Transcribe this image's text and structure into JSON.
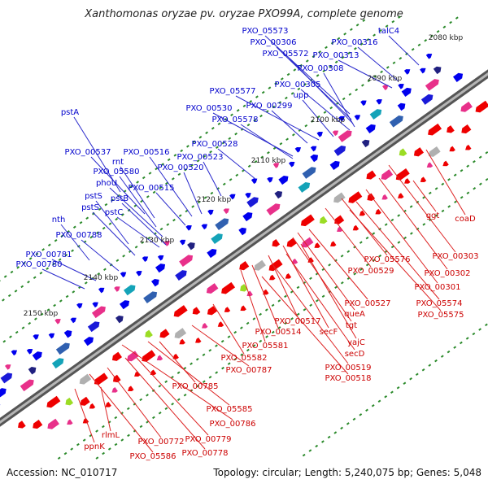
{
  "title": "Xanthomonas oryzae pv. oryzae PXO99A, complete genome",
  "accession": "Accession: NC_010717",
  "stats": "Topology: circular; Length: 5,240,075 bp; Genes: 5,048",
  "kbp_labels": [
    "2080 kbp",
    "2090 kbp",
    "2100 kbp",
    "2110 kbp",
    "2120 kbp",
    "2130 kbp",
    "2140 kbp",
    "2150 kbp"
  ],
  "upper_genes": [
    "PXO_05573",
    "talC4",
    "PXO_00306",
    "PXO_00316",
    "PXO_05572",
    "PXO_00313",
    "PXO_00308",
    "PXO_00305",
    "upp",
    "PXO_05577",
    "PXO_00299",
    "PXO_00530",
    "PXO_05578",
    "pstA",
    "PXO_00528",
    "PXO_00537",
    "rnt",
    "PXO_00516",
    "PXO_00523",
    "PXO_05580",
    "PXO_00520",
    "phoU",
    "PXO_00515",
    "pstS",
    "pstB",
    "pstS",
    "pstC",
    "nth",
    "PXO_00788",
    "PXO_00781",
    "PXO_00780"
  ],
  "lower_genes": [
    "ggt",
    "coaD",
    "PXO_00303",
    "PXO_00302",
    "PXO_05576",
    "PXO_00301",
    "PXO_00529",
    "PXO_05574",
    "PXO_05575",
    "PXO_00527",
    "queA",
    "PXO_00517",
    "tgt",
    "PXO_00514",
    "secF",
    "yajC",
    "PXO_05581",
    "secD",
    "PXO_05582",
    "PXO_00519",
    "PXO_00787",
    "PXO_00518",
    "PXO_00785",
    "PXO_05585",
    "PXO_00786",
    "rlmL",
    "PXO_00779",
    "ppnK",
    "PXO_00772",
    "PXO_00778",
    "PXO_05586"
  ],
  "colors": {
    "forward": "#0000ee",
    "reverse": "#ee0000",
    "backbone": "#777777",
    "tick": "#2b8a2b",
    "label_upper": "#0000cc",
    "label_lower": "#cc0000"
  }
}
